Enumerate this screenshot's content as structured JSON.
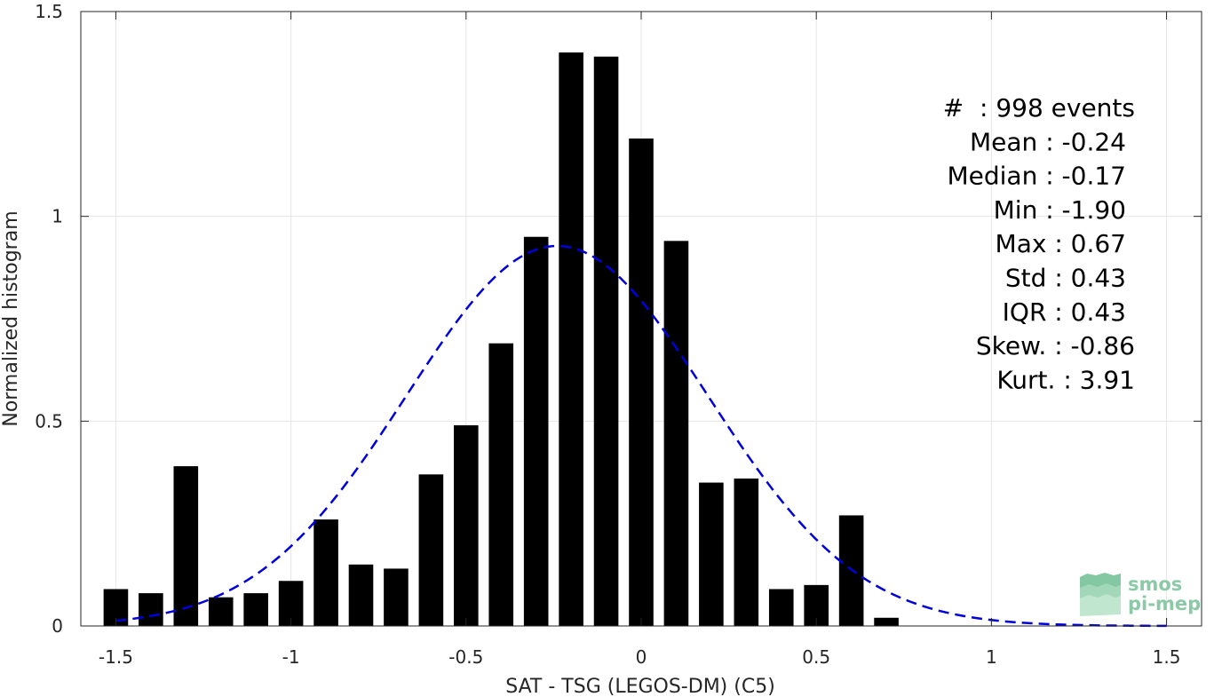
{
  "chart_data": {
    "type": "bar",
    "xlabel": "SAT - TSG (LEGOS-DM) (C5)",
    "ylabel": "Normalized histogram",
    "xlim": [
      -1.6,
      1.6
    ],
    "ylim": [
      0,
      1.5
    ],
    "xticks": [
      -1.5,
      -1,
      -0.5,
      0,
      0.5,
      1,
      1.5
    ],
    "xtick_labels": [
      "-1.5",
      "-1",
      "-0.5",
      "0",
      "0.5",
      "1",
      "1.5"
    ],
    "yticks": [
      0,
      0.5,
      1,
      1.5
    ],
    "ytick_labels": [
      "0",
      "0.5",
      "1",
      "1.5"
    ],
    "grid": true,
    "bar_width": 0.07,
    "bar_color": "#000000",
    "bins": [
      -1.5,
      -1.4,
      -1.3,
      -1.2,
      -1.1,
      -1.0,
      -0.9,
      -0.8,
      -0.7,
      -0.6,
      -0.5,
      -0.4,
      -0.3,
      -0.2,
      -0.1,
      0.0,
      0.1,
      0.2,
      0.3,
      0.4,
      0.5,
      0.6,
      0.7
    ],
    "values": [
      0.09,
      0.08,
      0.39,
      0.07,
      0.08,
      0.11,
      0.26,
      0.15,
      0.14,
      0.37,
      0.49,
      0.69,
      0.95,
      1.4,
      1.39,
      1.19,
      0.94,
      0.35,
      0.36,
      0.09,
      0.1,
      0.27,
      0.02
    ],
    "fit_curve": {
      "type": "gaussian",
      "mean": -0.24,
      "std": 0.43,
      "x_range": [
        -1.5,
        1.5
      ],
      "color": "#0000dd",
      "style": "dashed"
    },
    "annotations": [
      "#  : 998 events",
      "Mean : -0.24",
      "Median : -0.17",
      "Min : -1.90",
      "Max : 0.67",
      "Std : 0.43",
      "IQR : 0.43",
      "Skew. : -0.86",
      "Kurt. : 3.91"
    ]
  },
  "logo": {
    "line1": "smos",
    "line2": "pi-mep",
    "color": "#8cc9a6"
  }
}
